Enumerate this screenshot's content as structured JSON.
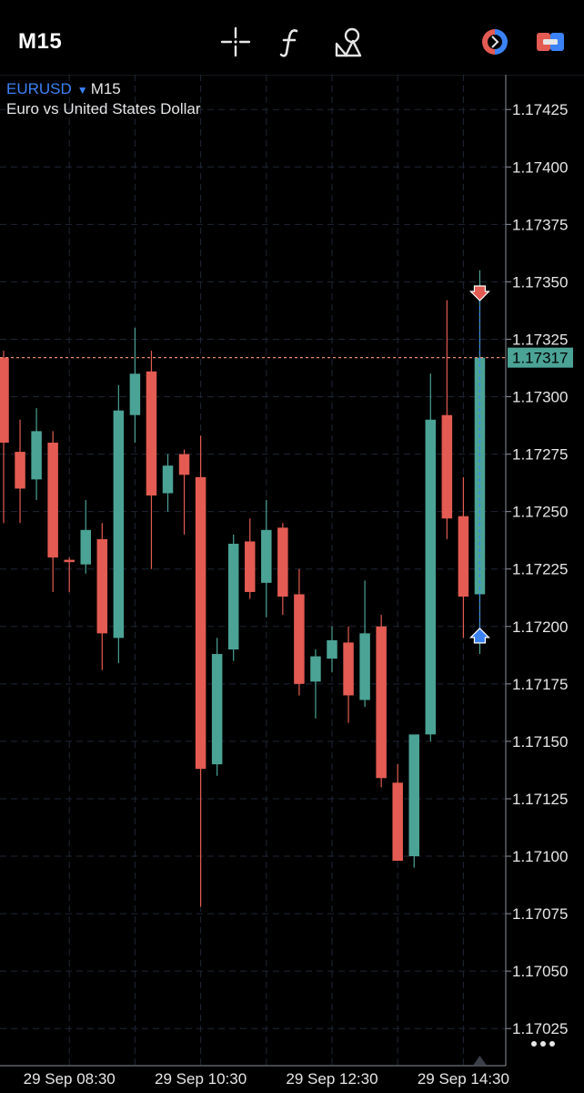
{
  "toolbar": {
    "timeframe": "M15",
    "icons": [
      "crosshair-icon",
      "indicators-icon",
      "objects-icon",
      "trade-icon",
      "chart-type-icon"
    ]
  },
  "header": {
    "symbol": "EURUSD",
    "timeframe": "M15",
    "description": "Euro vs United States Dollar"
  },
  "colors": {
    "background": "#000000",
    "bull": "#4ba396",
    "bear": "#e35b52",
    "grid": "#1e2636",
    "price_line": "#e58a6e",
    "price_label_bg": "#4ba396",
    "text": "#e6e6e6",
    "accent": "#3b82f6"
  },
  "chart_data": {
    "type": "candlestick",
    "symbol": "EURUSD",
    "timeframe": "M15",
    "title": "EURUSD M15",
    "subtitle": "Euro vs United States Dollar",
    "y_ticks": [
      "1.17425",
      "1.17400",
      "1.17375",
      "1.17350",
      "1.17325",
      "1.17300",
      "1.17275",
      "1.17250",
      "1.17225",
      "1.17200",
      "1.17175",
      "1.17150",
      "1.17125",
      "1.17100",
      "1.17075",
      "1.17050",
      "1.17025"
    ],
    "ylim": [
      1.17012,
      1.17435
    ],
    "x_tick_labels": [
      "29 Sep 08:30",
      "29 Sep 10:30",
      "29 Sep 12:30",
      "29 Sep 14:30"
    ],
    "x_tick_candle_index": [
      4,
      12,
      20,
      28
    ],
    "current_price": "1.17317",
    "current_price_value": 1.17317,
    "grid": true,
    "candles": [
      {
        "o": 1.17317,
        "h": 1.1732,
        "l": 1.17245,
        "c": 1.1728
      },
      {
        "o": 1.17276,
        "h": 1.1729,
        "l": 1.17245,
        "c": 1.1726
      },
      {
        "o": 1.17264,
        "h": 1.17295,
        "l": 1.17255,
        "c": 1.17285
      },
      {
        "o": 1.1728,
        "h": 1.17285,
        "l": 1.17215,
        "c": 1.1723
      },
      {
        "o": 1.17229,
        "h": 1.1723,
        "l": 1.17215,
        "c": 1.17228
      },
      {
        "o": 1.17227,
        "h": 1.17255,
        "l": 1.17223,
        "c": 1.17242
      },
      {
        "o": 1.17238,
        "h": 1.17245,
        "l": 1.17181,
        "c": 1.17197
      },
      {
        "o": 1.17195,
        "h": 1.17305,
        "l": 1.17184,
        "c": 1.17294
      },
      {
        "o": 1.17292,
        "h": 1.1733,
        "l": 1.1728,
        "c": 1.1731
      },
      {
        "o": 1.17311,
        "h": 1.1732,
        "l": 1.17225,
        "c": 1.17257
      },
      {
        "o": 1.17258,
        "h": 1.17275,
        "l": 1.1725,
        "c": 1.1727
      },
      {
        "o": 1.17275,
        "h": 1.17277,
        "l": 1.1724,
        "c": 1.17266
      },
      {
        "o": 1.17265,
        "h": 1.17283,
        "l": 1.17078,
        "c": 1.17138
      },
      {
        "o": 1.1714,
        "h": 1.17195,
        "l": 1.17135,
        "c": 1.17188
      },
      {
        "o": 1.1719,
        "h": 1.1724,
        "l": 1.17185,
        "c": 1.17236
      },
      {
        "o": 1.17237,
        "h": 1.17247,
        "l": 1.17212,
        "c": 1.17215
      },
      {
        "o": 1.17219,
        "h": 1.17255,
        "l": 1.17204,
        "c": 1.17242
      },
      {
        "o": 1.17243,
        "h": 1.17245,
        "l": 1.17205,
        "c": 1.17213
      },
      {
        "o": 1.17214,
        "h": 1.17225,
        "l": 1.1717,
        "c": 1.17175
      },
      {
        "o": 1.17176,
        "h": 1.1719,
        "l": 1.1716,
        "c": 1.17187
      },
      {
        "o": 1.17186,
        "h": 1.172,
        "l": 1.1718,
        "c": 1.17194
      },
      {
        "o": 1.17193,
        "h": 1.172,
        "l": 1.17158,
        "c": 1.1717
      },
      {
        "o": 1.17168,
        "h": 1.1722,
        "l": 1.17165,
        "c": 1.17197
      },
      {
        "o": 1.172,
        "h": 1.17205,
        "l": 1.1713,
        "c": 1.17134
      },
      {
        "o": 1.17132,
        "h": 1.1714,
        "l": 1.17098,
        "c": 1.17098
      },
      {
        "o": 1.171,
        "h": 1.17152,
        "l": 1.17095,
        "c": 1.17153
      },
      {
        "o": 1.17153,
        "h": 1.1731,
        "l": 1.1715,
        "c": 1.1729
      },
      {
        "o": 1.17292,
        "h": 1.17342,
        "l": 1.17238,
        "c": 1.17247
      },
      {
        "o": 1.17248,
        "h": 1.17265,
        "l": 1.17195,
        "c": 1.17213
      },
      {
        "o": 1.17214,
        "h": 1.17355,
        "l": 1.17188,
        "c": 1.17317
      }
    ],
    "markers": [
      {
        "type": "sell",
        "candle_index": 29,
        "price": 1.17345
      },
      {
        "type": "buy",
        "candle_index": 29,
        "price": 1.17196
      }
    ]
  }
}
